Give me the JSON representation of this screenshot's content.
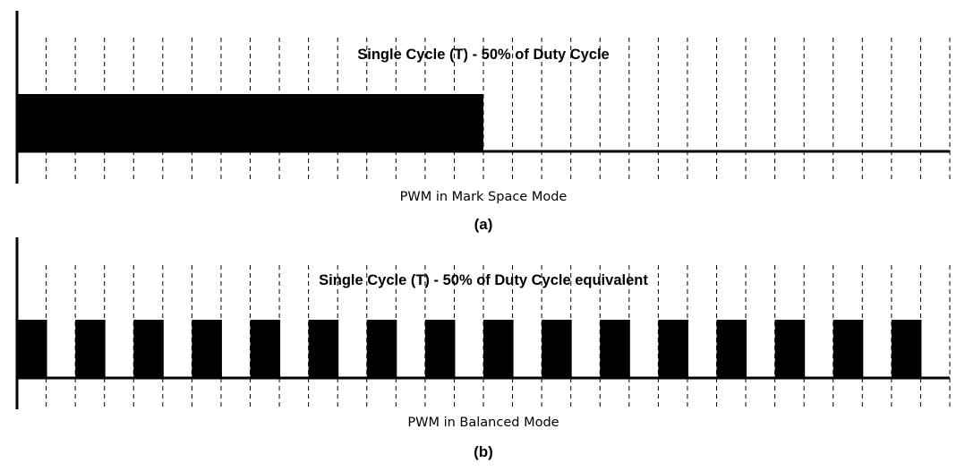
{
  "panel_a": {
    "title": "Single Cycle (T) - 50% of Duty Cycle",
    "caption": "PWM in Mark Space Mode",
    "label": "(a)",
    "mode": "mark-space",
    "duty_cycle_percent": 50,
    "slots": 32
  },
  "panel_b": {
    "title": "Single Cycle (T) - 50% of Duty Cycle equivalent",
    "caption": "PWM in Balanced Mode",
    "label": "(b)",
    "mode": "balanced",
    "duty_cycle_percent": 50,
    "slots": 32
  },
  "colors": {
    "signal": "#000000",
    "background": "#ffffff"
  }
}
